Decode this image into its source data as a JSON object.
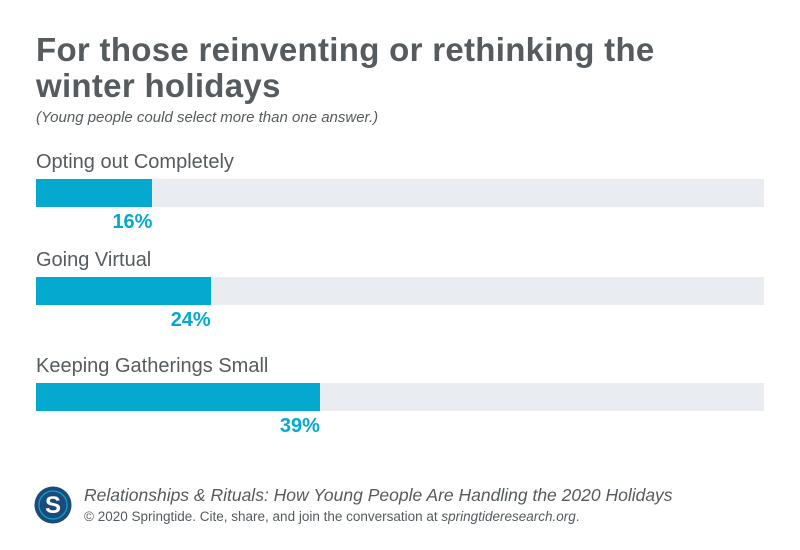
{
  "header": {
    "title": "For those reinventing or rethinking the winter holidays",
    "subtitle": "(Young people could select more than one answer.)"
  },
  "chart_data": {
    "type": "bar",
    "orientation": "horizontal",
    "title": "For those reinventing or rethinking the winter holidays",
    "subtitle": "(Young people could select more than one answer.)",
    "categories": [
      "Opting out Completely",
      "Going Virtual",
      "Keeping Gatherings Small"
    ],
    "values": [
      16,
      24,
      39
    ],
    "value_labels": [
      "16%",
      "24%",
      "39%"
    ],
    "xlim": [
      0,
      100
    ],
    "unit": "%",
    "grid": false,
    "legend": "none"
  },
  "footer": {
    "source_title": "Relationships & Rituals: How Young People Are Handling the 2020 Holidays",
    "copyright": "© 2020 Springtide. Cite, share, and join the conversation at ",
    "url": "springtideresearch.org",
    "period": "."
  },
  "logo": {
    "letter": "S",
    "outer_color": "#1a4b7a",
    "inner_color": "#04a9d0"
  },
  "colors": {
    "bar": "#04a9d0",
    "track": "#e9edf1",
    "text": "#555b5e"
  }
}
